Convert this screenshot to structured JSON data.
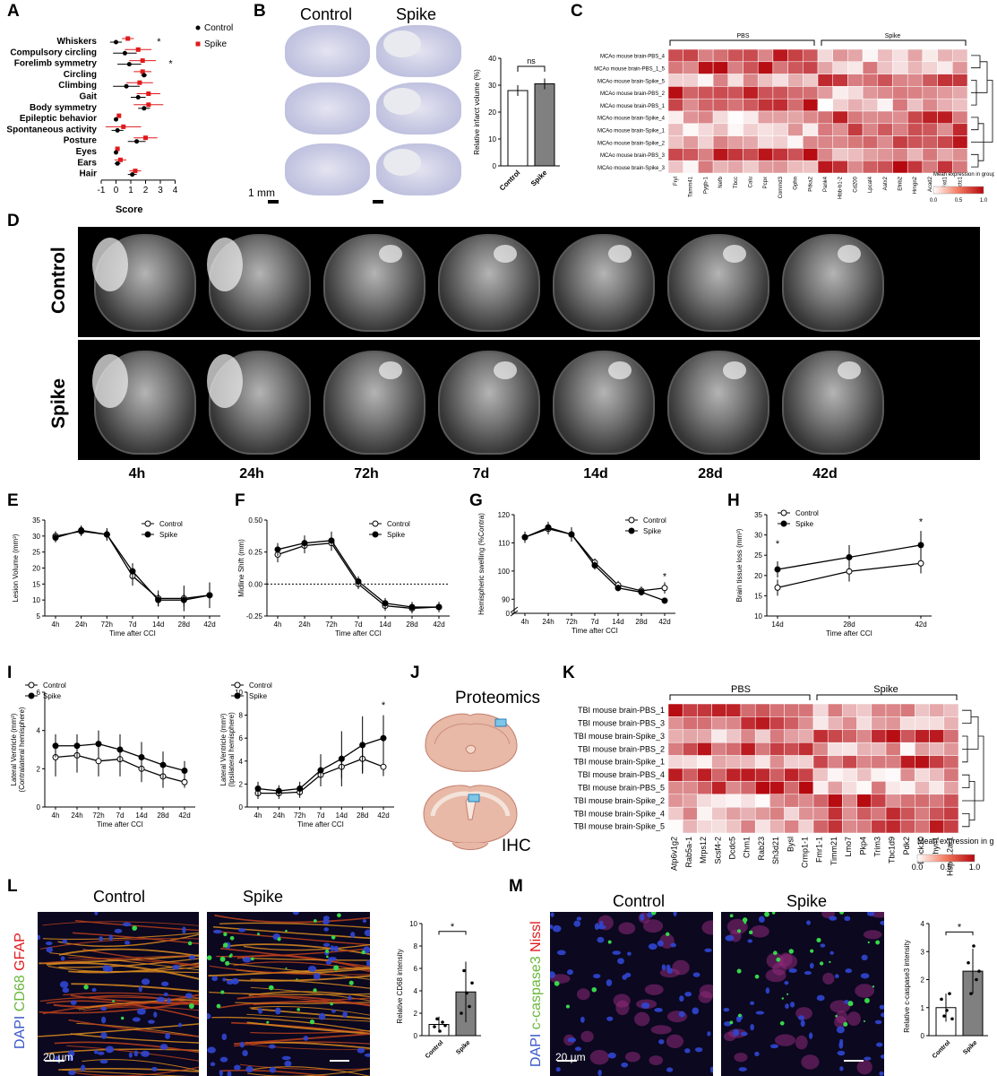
{
  "panel_labels": [
    "A",
    "B",
    "C",
    "D",
    "E",
    "F",
    "G",
    "H",
    "I",
    "J",
    "K",
    "L",
    "M"
  ],
  "panelA": {
    "legend": [
      "Control",
      "Spike"
    ],
    "categories": [
      "Whiskers",
      "Compulsory circling",
      "Forelimb symmetry",
      "Circling",
      "Climbing",
      "Gait",
      "Body symmetry",
      "Epileptic behavior",
      "Spontaneous activity",
      "Posture",
      "Eyes",
      "Ears",
      "Hair"
    ],
    "xlabel": "Score",
    "xticks": [
      "-1",
      "0",
      "1",
      "2",
      "3",
      "4"
    ],
    "sig_marks": [
      "*",
      "*"
    ]
  },
  "panelB": {
    "col_labels": [
      "Control",
      "Spike"
    ],
    "scale_label": "1 mm",
    "ylabel": "Relative infarct volume (%)",
    "yticks": [
      "0",
      "10",
      "20",
      "30",
      "40"
    ],
    "sig": "ns",
    "bar_labels": [
      "Control",
      "Spike"
    ]
  },
  "panelC": {
    "group_labels": [
      "PBS",
      "Spike"
    ],
    "rows": [
      "MCAo mouse brain-PBS_4",
      "MCAo mouse brain-PBS_1_5",
      "MCAo mouse brain-Spike_5",
      "MCAo mouse brain-PBS_2",
      "MCAo mouse brain-PBS_1",
      "MCAo mouse brain-Spike_4",
      "MCAo mouse brain-Spike_1",
      "MCAo mouse brain-Spike_2",
      "MCAo mouse brain-PBS_3",
      "MCAo mouse brain-Spike_3"
    ],
    "cols": [
      "Fryl",
      "Tamm41",
      "Pygb-1",
      "Nefb",
      "Tbcc",
      "Calu",
      "Pcpx",
      "Commd3",
      "Gphn",
      "Pitka2",
      "Pank4",
      "Hbb-b1-2",
      "Cd200",
      "Lpcat4",
      "Aatx2",
      "Efnb2",
      "Hmgn2",
      "Acad2",
      "Fxd1",
      "Dctc1"
    ],
    "colorbar_title": "Mean expression in group",
    "colorbar_ticks": [
      "0.0",
      "0.5",
      "1.0"
    ]
  },
  "panelD": {
    "row_labels": [
      "Control",
      "Spike"
    ],
    "timepoints": [
      "4h",
      "24h",
      "72h",
      "7d",
      "14d",
      "28d",
      "42d"
    ]
  },
  "panelE": {
    "ylabel": "Lesion Volume (mm³)",
    "xlabel": "Time after CCI",
    "legend": [
      "Control",
      "Spike"
    ],
    "yticks": [
      "5",
      "10",
      "15",
      "20",
      "25",
      "30",
      "35"
    ],
    "xticks": [
      "4h",
      "24h",
      "72h",
      "7d",
      "14d",
      "28d",
      "42d"
    ]
  },
  "panelF": {
    "ylabel": "Midline Shift (mm)",
    "xlabel": "Time after CCI",
    "legend": [
      "Control",
      "Spike"
    ],
    "yticks": [
      "-0.25",
      "0.00",
      "0.25",
      "0.50"
    ],
    "xticks": [
      "4h",
      "24h",
      "72h",
      "7d",
      "14d",
      "28d",
      "42d"
    ]
  },
  "panelG": {
    "ylabel": "Hemispheric swelling (%Contra)",
    "xlabel": "Time after CCI",
    "legend": [
      "Control",
      "Spike"
    ],
    "yticks": [
      "0",
      "90",
      "100",
      "110",
      "120"
    ],
    "xticks": [
      "4h",
      "24h",
      "72h",
      "7d",
      "14d",
      "28d",
      "42d"
    ],
    "sig": "*"
  },
  "panelH": {
    "ylabel": "Brain tissue loss (mm³)",
    "xlabel": "Time after CCI",
    "legend": [
      "Control",
      "Spike"
    ],
    "yticks": [
      "10",
      "15",
      "20",
      "25",
      "30",
      "35"
    ],
    "xticks": [
      "14d",
      "28d",
      "42d"
    ],
    "sig": [
      "*",
      "*"
    ]
  },
  "panelI": {
    "left": {
      "ylabel": "Lateral Ventricle (mm³)",
      "ylabel2": "(Contralateral hemisphere)",
      "xlabel": "Time after CCI",
      "legend": [
        "Control",
        "Spike"
      ],
      "yticks": [
        "0",
        "2",
        "4",
        "6"
      ],
      "xticks": [
        "4h",
        "24h",
        "72h",
        "7d",
        "14d",
        "28d",
        "42d"
      ]
    },
    "right": {
      "ylabel": "Lateral Ventricle (mm³)",
      "ylabel2": "(Ipsilateral hemisphere)",
      "xlabel": "Time after CCI",
      "legend": [
        "Control",
        "Spike"
      ],
      "yticks": [
        "0",
        "2",
        "4",
        "6",
        "8",
        "10"
      ],
      "xticks": [
        "4h",
        "24h",
        "72h",
        "7d",
        "14d",
        "28d",
        "42d"
      ],
      "sig": "*"
    }
  },
  "panelJ": {
    "top_label": "Proteomics",
    "bottom_label": "IHC"
  },
  "panelK": {
    "group_labels": [
      "PBS",
      "Spike"
    ],
    "rows": [
      "TBI mouse brain-PBS_1",
      "TBI mouse brain-PBS_3",
      "TBI mouse brain-Spike_3",
      "TBI mouse brain-PBS_2",
      "TBI mouse brain-Spike_1",
      "TBI mouse brain-PBS_4",
      "TBI mouse brain-PBS_5",
      "TBI mouse brain-Spike_2",
      "TBI mouse brain-Spike_4",
      "TBI mouse brain-Spike_5"
    ],
    "cols": [
      "Atp6v1g2",
      "Rab5a-1",
      "Mrps12",
      "Scsf4-2",
      "Dcdc5",
      "Chm1",
      "Rab23",
      "Sh3d21",
      "Bysl",
      "Crmp1-1",
      "Fmr1-1",
      "Timm21",
      "Lmo7",
      "Pkp4",
      "Trim3",
      "Tbc1d9",
      "Pdk2",
      "Dock10",
      "Thyn1",
      "Hspa12a-1"
    ],
    "colorbar_title": "Mean expression in group",
    "colorbar_ticks": [
      "0.0",
      "0.5",
      "1.0"
    ]
  },
  "panelL": {
    "col_labels": [
      "Control",
      "Spike"
    ],
    "stain_label": [
      "DAPI",
      "CD68",
      "GFAP"
    ],
    "scale_label": "20 μm",
    "ylabel": "Relative CD68 intensity",
    "yticks": [
      "0",
      "2",
      "4",
      "6",
      "8",
      "10"
    ],
    "bar_labels": [
      "Control",
      "Spike"
    ],
    "sig": "*"
  },
  "panelM": {
    "col_labels": [
      "Control",
      "Spike"
    ],
    "stain_label": [
      "DAPI",
      "c-caspase3",
      "Nissl"
    ],
    "scale_label": "20 μm",
    "ylabel": "Relative c-caspase3 intensity",
    "yticks": [
      "0",
      "1",
      "2",
      "3",
      "4"
    ],
    "bar_labels": [
      "Control",
      "Spike"
    ],
    "sig": "*"
  },
  "colors": {
    "control": "#000000",
    "spike": "#e0191b",
    "heat_low": "#ffffff",
    "heat_high": "#b5080e"
  }
}
